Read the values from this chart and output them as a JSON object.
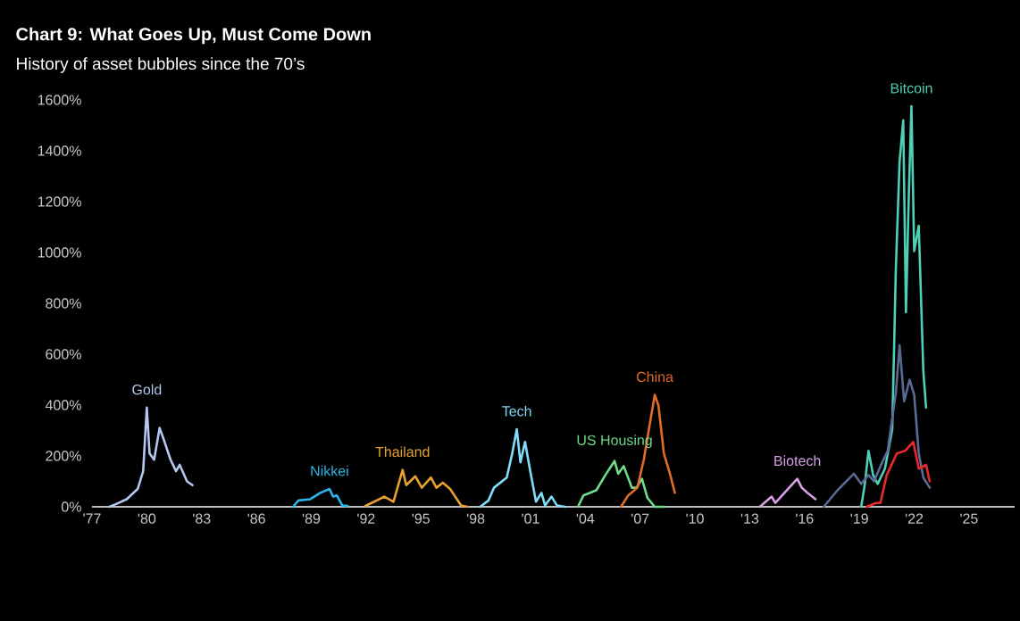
{
  "chart_data": {
    "type": "line",
    "title": "Chart 9: What Goes Up, Must Come Down",
    "subtitle": "History of asset bubbles since the 70’s",
    "xlim": [
      1977,
      2027.5
    ],
    "ylim": [
      0,
      1600
    ],
    "xticks": [
      {
        "value": 1977,
        "label": "'77"
      },
      {
        "value": 1980,
        "label": "'80"
      },
      {
        "value": 1983,
        "label": "'83"
      },
      {
        "value": 1986,
        "label": "'86"
      },
      {
        "value": 1989,
        "label": "'89"
      },
      {
        "value": 1992,
        "label": "'92"
      },
      {
        "value": 1995,
        "label": "'95"
      },
      {
        "value": 1998,
        "label": "'98"
      },
      {
        "value": 2001,
        "label": "'01"
      },
      {
        "value": 2004,
        "label": "'04"
      },
      {
        "value": 2007,
        "label": "'07"
      },
      {
        "value": 2010,
        "label": "'10"
      },
      {
        "value": 2013,
        "label": "'13"
      },
      {
        "value": 2016,
        "label": "'16"
      },
      {
        "value": 2019,
        "label": "'19"
      },
      {
        "value": 2022,
        "label": "'22"
      },
      {
        "value": 2025,
        "label": "'25"
      }
    ],
    "yticks": [
      {
        "value": 0,
        "label": "0%"
      },
      {
        "value": 200,
        "label": "200%"
      },
      {
        "value": 400,
        "label": "400%"
      },
      {
        "value": 600,
        "label": "600%"
      },
      {
        "value": 800,
        "label": "800%"
      },
      {
        "value": 1000,
        "label": "1000%"
      },
      {
        "value": 1200,
        "label": "1200%"
      },
      {
        "value": 1400,
        "label": "1400%"
      },
      {
        "value": 1600,
        "label": "1600%"
      }
    ],
    "series": [
      {
        "name": "Gold",
        "color": "#b4c7f0",
        "x": [
          1977.95,
          1978.3,
          1978.9,
          1979.5,
          1979.8,
          1980.0,
          1980.15,
          1980.4,
          1980.7,
          1980.9,
          1981.3,
          1981.6,
          1981.8,
          1982.2,
          1982.5
        ],
        "values": [
          0,
          10,
          30,
          70,
          140,
          390,
          210,
          185,
          310,
          270,
          185,
          140,
          165,
          100,
          85
        ]
      },
      {
        "name": "Nikkei",
        "color": "#29b5e8",
        "x": [
          1988.0,
          1988.3,
          1988.95,
          1989.5,
          1990.0,
          1990.2,
          1990.4,
          1990.7,
          1991.0
        ],
        "values": [
          0,
          25,
          30,
          55,
          70,
          40,
          45,
          5,
          3
        ]
      },
      {
        "name": "Thailand",
        "color": "#e8a130",
        "x": [
          1991.95,
          1992.3,
          1993.0,
          1993.5,
          1994.0,
          1994.2,
          1994.7,
          1995.05,
          1995.55,
          1995.85,
          1996.2,
          1996.6,
          1997.2,
          1997.55
        ],
        "values": [
          3,
          15,
          40,
          20,
          145,
          85,
          120,
          75,
          115,
          75,
          95,
          70,
          5,
          0
        ]
      },
      {
        "name": "Tech",
        "color": "#7fdcfb",
        "x": [
          1998.25,
          1998.7,
          1999.0,
          1999.7,
          2000.0,
          2000.25,
          2000.45,
          2000.7,
          2001.0,
          2001.3,
          2001.6,
          2001.8,
          2002.15,
          2002.45,
          2002.9
        ],
        "values": [
          0,
          25,
          75,
          115,
          210,
          305,
          175,
          255,
          135,
          20,
          55,
          5,
          40,
          5,
          0
        ]
      },
      {
        "name": "US Housing",
        "color": "#6fdc8c",
        "x": [
          2003.6,
          2003.9,
          2004.6,
          2005.1,
          2005.6,
          2005.8,
          2006.1,
          2006.55,
          2006.8,
          2007.1,
          2007.4,
          2007.8,
          2008.3
        ],
        "values": [
          0,
          45,
          65,
          125,
          180,
          130,
          160,
          75,
          75,
          110,
          35,
          0,
          0
        ]
      },
      {
        "name": "China",
        "color": "#e06c25",
        "x": [
          2005.95,
          2006.35,
          2006.85,
          2007.2,
          2007.6,
          2007.8,
          2008.0,
          2008.3,
          2008.65,
          2008.9
        ],
        "values": [
          0,
          45,
          75,
          185,
          355,
          440,
          400,
          210,
          125,
          55
        ]
      },
      {
        "name": "Biotech",
        "color": "#d9a0e6",
        "x": [
          2013.55,
          2014.2,
          2014.4,
          2015.6,
          2015.85,
          2016.15,
          2016.6
        ],
        "values": [
          0,
          40,
          15,
          110,
          75,
          55,
          30
        ]
      },
      {
        "name": "Bitcoin",
        "color": "#4fcfb5",
        "x": [
          2019.1,
          2019.3,
          2019.5,
          2019.75,
          2020.0,
          2020.4,
          2020.8,
          2021.0,
          2021.2,
          2021.4,
          2021.55,
          2021.7,
          2021.85,
          2022.0,
          2022.25,
          2022.5,
          2022.65
        ],
        "values": [
          0,
          90,
          220,
          125,
          90,
          150,
          305,
          945,
          1355,
          1520,
          765,
          1210,
          1575,
          1005,
          1105,
          535,
          390
        ]
      },
      {
        "color": "#5a6a94",
        "x": [
          2017.05,
          2017.8,
          2018.7,
          2019.1,
          2019.5,
          2019.8,
          2020.25,
          2020.55,
          2021.0,
          2021.2,
          2021.45,
          2021.75,
          2022.0,
          2022.25,
          2022.5,
          2022.85
        ],
        "values": [
          0,
          65,
          130,
          90,
          125,
          100,
          175,
          220,
          450,
          635,
          415,
          500,
          440,
          210,
          115,
          75
        ]
      },
      {
        "color": "#e8282b",
        "x": [
          2019.4,
          2019.9,
          2020.15,
          2020.5,
          2021.05,
          2021.5,
          2021.95,
          2022.25,
          2022.65,
          2022.85
        ],
        "values": [
          0,
          15,
          15,
          125,
          210,
          220,
          255,
          150,
          165,
          100
        ]
      }
    ]
  }
}
